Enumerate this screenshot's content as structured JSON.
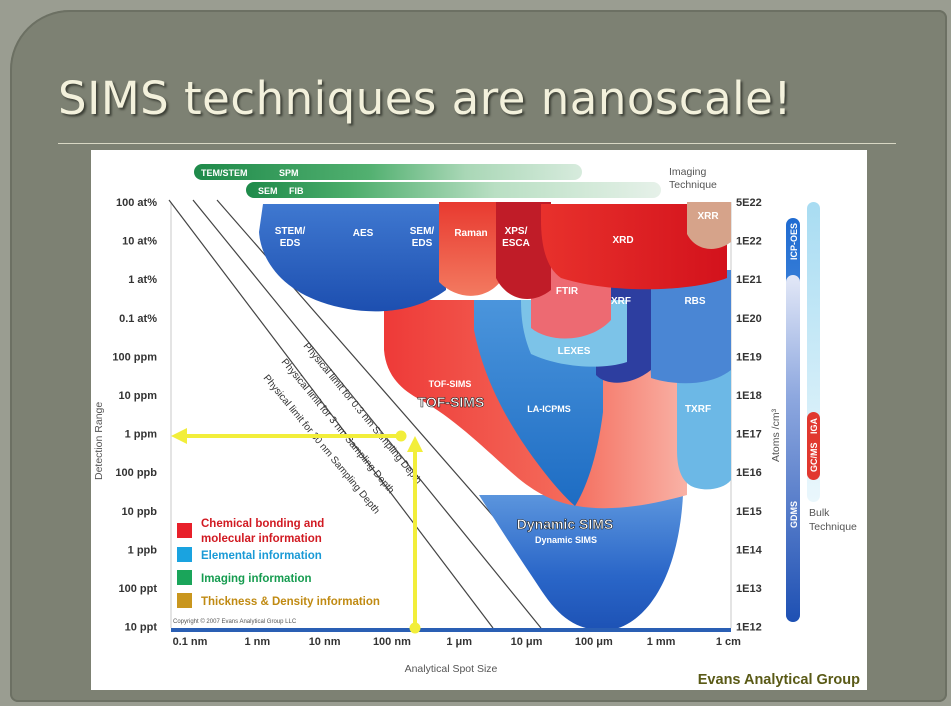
{
  "slide": {
    "title": "SIMS techniques are nanoscale!",
    "credit": "Evans Analytical Group"
  },
  "figure": {
    "imaging_label_line1": "Imaging",
    "imaging_label_line2": "Technique",
    "imaging_bars": [
      "TEM/STEM",
      "SPM",
      "SEM",
      "FIB"
    ],
    "left_axis_title": "Detection Range",
    "left_ticks": [
      "100 at%",
      "10 at%",
      "1 at%",
      "0.1 at%",
      "100 ppm",
      "10 ppm",
      "1 ppm",
      "100 ppb",
      "10 ppb",
      "1 ppb",
      "100 ppt",
      "10 ppt"
    ],
    "right_axis_title": "Atoms /cm³",
    "right_ticks": [
      "5E22",
      "1E22",
      "1E21",
      "1E20",
      "1E19",
      "1E18",
      "1E17",
      "1E16",
      "1E15",
      "1E14",
      "1E13",
      "1E12"
    ],
    "bottom_axis_title": "Analytical Spot Size",
    "bottom_ticks": [
      "0.1 nm",
      "1 nm",
      "10 nm",
      "100 nm",
      "1 μm",
      "10 μm",
      "100 μm",
      "1 mm",
      "1 cm"
    ],
    "physical_limits": [
      "Physical limit for 0.3 nm Sampling Depth",
      "Physical limit for 3 nm Sampling Depth",
      "Physical limit for 30 nm Sampling Depth"
    ],
    "techniques": {
      "stem_eds_1": "STEM/",
      "stem_eds_2": "EDS",
      "aes": "AES",
      "sem_eds_1": "SEM/",
      "sem_eds_2": "EDS",
      "raman": "Raman",
      "xps_1": "XPS/",
      "xps_2": "ESCA",
      "xrd": "XRD",
      "xrr": "XRR",
      "ftir": "FTIR",
      "xrf": "XRF",
      "rbs": "RBS",
      "lexes": "LEXES",
      "tof_sims_small": "TOF-SIMS",
      "la_icpms": "LA-ICPMS",
      "txrf": "TXRF",
      "dynamic_sims_small": "Dynamic SIMS"
    },
    "overlay_labels": {
      "tof_sims": "TOF-SIMS",
      "dynamic_sims": "Dynamic SIMS"
    },
    "bulk_bars": [
      "ICP-OES",
      "GDMS",
      "GC/MS",
      "IGA"
    ],
    "bulk_label_line1": "Bulk",
    "bulk_label_line2": "Technique",
    "legend": [
      {
        "color": "#e8202a",
        "line1": "Chemical bonding and",
        "line2": "molecular information",
        "text_color": "#d11a22"
      },
      {
        "color": "#1aa3e0",
        "line1": "Elemental information",
        "line2": "",
        "text_color": "#1a9ad6"
      },
      {
        "color": "#1aa55a",
        "line1": "Imaging information",
        "line2": "",
        "text_color": "#169c50"
      },
      {
        "color": "#c9961e",
        "line1": "Thickness & Density information",
        "line2": "",
        "text_color": "#c08a12"
      }
    ],
    "copyright": "Copyright © 2007 Evans Analytical Group LLC"
  }
}
